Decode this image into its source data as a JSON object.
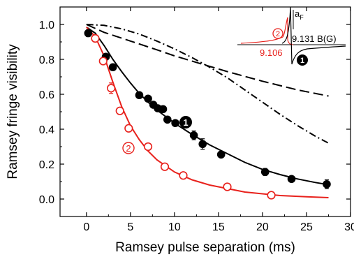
{
  "chart_data": {
    "type": "scatter",
    "xlabel": "Ramsey pulse separation (ms)",
    "ylabel": "Ramsey fringe visibility",
    "xlim": [
      -3,
      30
    ],
    "ylim": [
      -0.1,
      1.1
    ],
    "xticks": [
      0,
      5,
      10,
      15,
      20,
      25,
      30
    ],
    "yticks": [
      0.0,
      0.2,
      0.4,
      0.6,
      0.8,
      1.0
    ],
    "xtick_labels": [
      "0",
      "5",
      "10",
      "15",
      "20",
      "25",
      "30"
    ],
    "ytick_labels": [
      "0.0",
      "0.2",
      "0.4",
      "0.6",
      "0.8",
      "1.0"
    ],
    "grid": false,
    "colors": {
      "series1": "#000000",
      "series2": "#e8211c"
    },
    "series": [
      {
        "marker": "filled-circle",
        "color": "#000000",
        "points": [
          {
            "x": 0.2,
            "y": 0.95,
            "err": 0.02
          },
          {
            "x": 2.2,
            "y": 0.815,
            "err": 0.015
          },
          {
            "x": 3.0,
            "y": 0.755,
            "err": 0.015
          },
          {
            "x": 6.0,
            "y": 0.595,
            "err": 0.015
          },
          {
            "x": 7.0,
            "y": 0.575,
            "err": 0.015
          },
          {
            "x": 7.6,
            "y": 0.54,
            "err": 0.015
          },
          {
            "x": 8.1,
            "y": 0.52,
            "err": 0.015
          },
          {
            "x": 8.7,
            "y": 0.515,
            "err": 0.015
          },
          {
            "x": 9.2,
            "y": 0.455,
            "err": 0.015
          },
          {
            "x": 10.1,
            "y": 0.435,
            "err": 0.015
          },
          {
            "x": 12.2,
            "y": 0.365,
            "err": 0.025
          },
          {
            "x": 13.2,
            "y": 0.315,
            "err": 0.03
          },
          {
            "x": 15.3,
            "y": 0.255,
            "err": 0.015
          },
          {
            "x": 20.3,
            "y": 0.155,
            "err": 0.02
          },
          {
            "x": 23.3,
            "y": 0.115,
            "err": 0.015
          },
          {
            "x": 27.3,
            "y": 0.085,
            "err": 0.025
          }
        ]
      },
      {
        "marker": "open-circle",
        "color": "#e8211c",
        "points": [
          {
            "x": 1.0,
            "y": 0.92,
            "err": 0.02
          },
          {
            "x": 1.9,
            "y": 0.79,
            "err": 0.015
          },
          {
            "x": 2.8,
            "y": 0.635,
            "err": 0.03
          },
          {
            "x": 3.8,
            "y": 0.505,
            "err": 0.015
          },
          {
            "x": 4.8,
            "y": 0.405,
            "err": 0.015
          },
          {
            "x": 7.0,
            "y": 0.3,
            "err": 0.015
          },
          {
            "x": 8.9,
            "y": 0.185,
            "err": 0.015
          },
          {
            "x": 11.0,
            "y": 0.135,
            "err": 0.015
          },
          {
            "x": 16.0,
            "y": 0.07,
            "err": 0.015
          },
          {
            "x": 21.0,
            "y": 0.022,
            "err": 0.015
          }
        ]
      }
    ],
    "fit_curves": [
      {
        "style": "solid",
        "color": "#000000",
        "points": [
          [
            0,
            0.985
          ],
          [
            1,
            0.95
          ],
          [
            2,
            0.88
          ],
          [
            3,
            0.8
          ],
          [
            4,
            0.73
          ],
          [
            5,
            0.665
          ],
          [
            6,
            0.605
          ],
          [
            7,
            0.555
          ],
          [
            8,
            0.51
          ],
          [
            10,
            0.435
          ],
          [
            12,
            0.37
          ],
          [
            14,
            0.31
          ],
          [
            16,
            0.26
          ],
          [
            18,
            0.21
          ],
          [
            20,
            0.17
          ],
          [
            22,
            0.14
          ],
          [
            24,
            0.115
          ],
          [
            26,
            0.095
          ],
          [
            27.5,
            0.082
          ]
        ]
      },
      {
        "style": "solid",
        "color": "#e8211c",
        "points": [
          [
            0,
            0.985
          ],
          [
            1,
            0.93
          ],
          [
            2,
            0.82
          ],
          [
            3,
            0.67
          ],
          [
            4,
            0.53
          ],
          [
            5,
            0.42
          ],
          [
            6,
            0.34
          ],
          [
            7,
            0.275
          ],
          [
            8,
            0.225
          ],
          [
            10,
            0.155
          ],
          [
            12,
            0.11
          ],
          [
            14,
            0.08
          ],
          [
            16,
            0.06
          ],
          [
            18,
            0.04
          ],
          [
            20,
            0.03
          ],
          [
            22,
            0.02
          ],
          [
            25,
            0.013
          ],
          [
            27.5,
            0.008
          ]
        ]
      },
      {
        "style": "dashed",
        "color": "#000000",
        "points": [
          [
            0,
            1.0
          ],
          [
            2,
            0.955
          ],
          [
            5,
            0.905
          ],
          [
            8,
            0.855
          ],
          [
            10,
            0.82
          ],
          [
            13,
            0.775
          ],
          [
            16,
            0.73
          ],
          [
            20,
            0.675
          ],
          [
            24,
            0.625
          ],
          [
            27.5,
            0.59
          ]
        ]
      },
      {
        "style": "dashdot",
        "color": "#000000",
        "points": [
          [
            0,
            1.0
          ],
          [
            2,
            0.995
          ],
          [
            4,
            0.975
          ],
          [
            6,
            0.945
          ],
          [
            8,
            0.905
          ],
          [
            10,
            0.86
          ],
          [
            12,
            0.81
          ],
          [
            14,
            0.755
          ],
          [
            16,
            0.695
          ],
          [
            18,
            0.625
          ],
          [
            20,
            0.555
          ],
          [
            22,
            0.485
          ],
          [
            24,
            0.42
          ],
          [
            26,
            0.36
          ],
          [
            27.5,
            0.32
          ]
        ]
      }
    ],
    "annotations": {
      "label1": "1",
      "label2": "2",
      "inset_a_label": "a",
      "inset_a_subscript": "F",
      "inset_black_value": "9.131 B(G)",
      "inset_red_value": "9.106",
      "inset_label1": "1",
      "inset_label2": "2"
    }
  }
}
